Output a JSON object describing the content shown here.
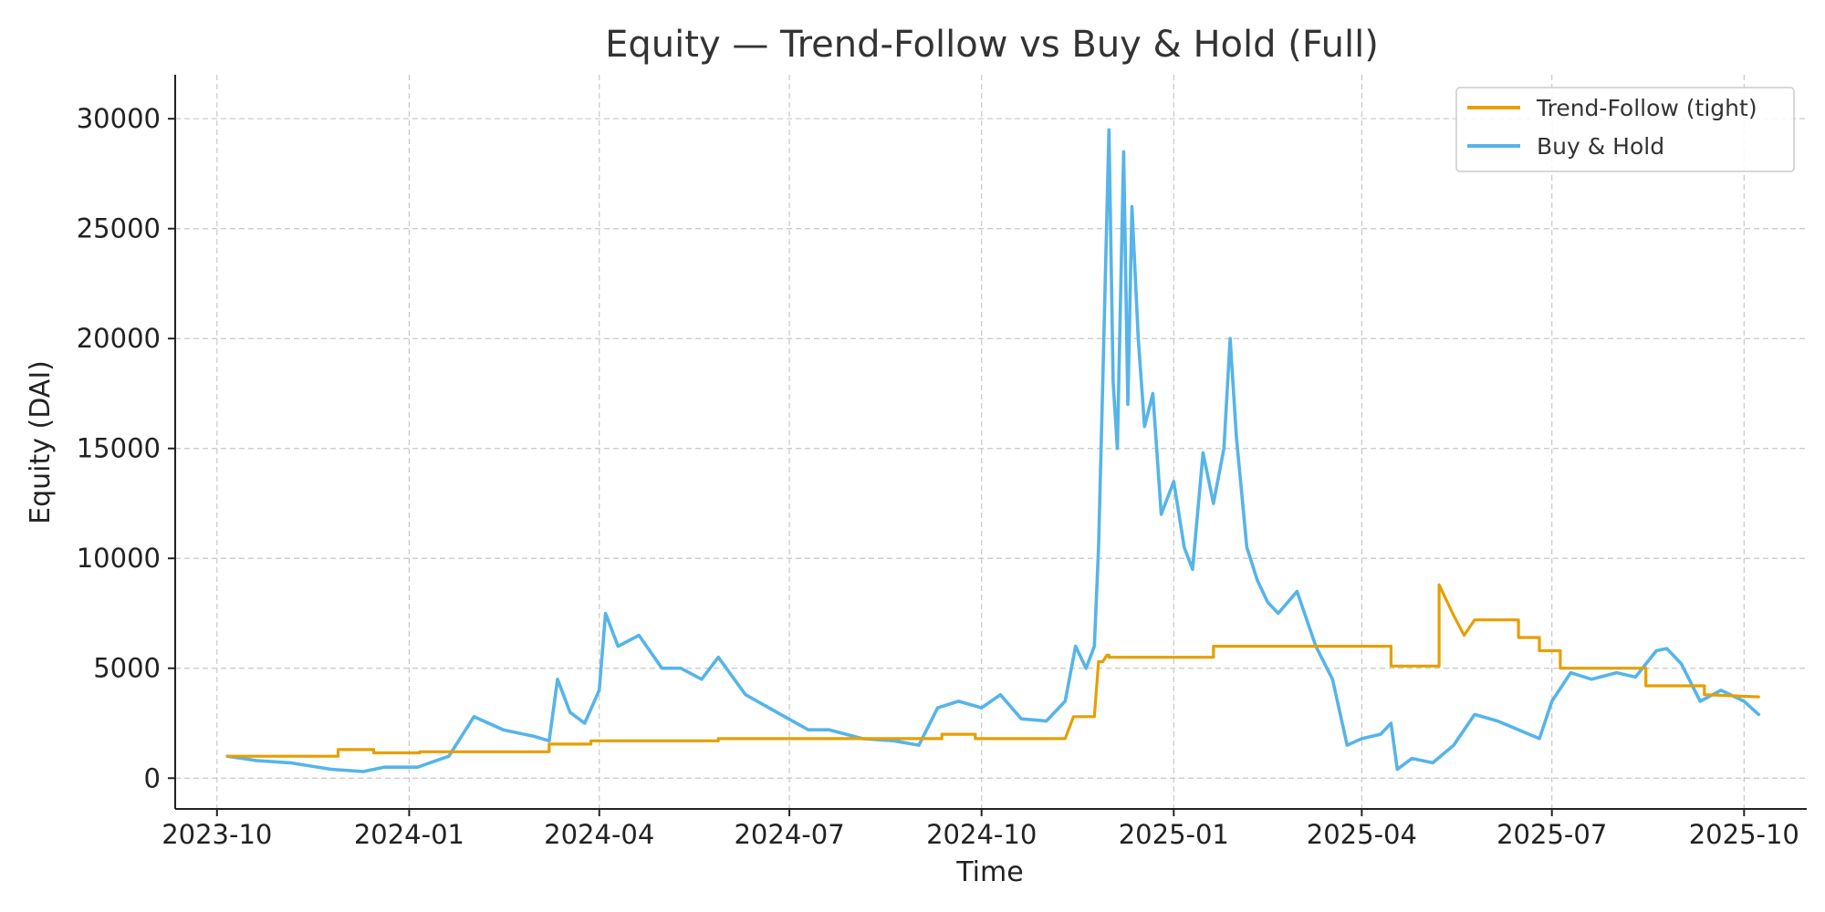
{
  "chart_data": {
    "type": "line",
    "title": "Equity — Trend-Follow vs Buy & Hold (Full)",
    "xlabel": "Time",
    "ylabel": "Equity (DAI)",
    "x_axis": "date",
    "xlim": [
      "2023-09-11",
      "2025-10-31"
    ],
    "ylim": [
      -1400,
      32000
    ],
    "xticks": [
      "2023-10",
      "2024-01",
      "2024-04",
      "2024-07",
      "2024-10",
      "2025-01",
      "2025-04",
      "2025-07",
      "2025-10"
    ],
    "yticks": [
      0,
      5000,
      10000,
      15000,
      20000,
      25000,
      30000
    ],
    "grid": true,
    "legend_position": "top-right",
    "series": [
      {
        "name": "Trend-Follow (tight)",
        "color": "#E69F00",
        "x": [
          "2023-10-06",
          "2023-11-28",
          "2023-11-28",
          "2023-12-15",
          "2023-12-15",
          "2024-01-06",
          "2024-01-06",
          "2024-03-08",
          "2024-03-08",
          "2024-03-28",
          "2024-03-28",
          "2024-05-28",
          "2024-05-28",
          "2024-09-12",
          "2024-09-12",
          "2024-09-28",
          "2024-09-28",
          "2024-11-10",
          "2024-11-14",
          "2024-11-24",
          "2024-11-26",
          "2024-11-28",
          "2024-11-30",
          "2024-12-01",
          "2024-12-01",
          "2025-01-20",
          "2025-01-20",
          "2025-01-28",
          "2025-01-28",
          "2025-04-15",
          "2025-04-15",
          "2025-05-08",
          "2025-05-08",
          "2025-05-15",
          "2025-05-20",
          "2025-05-25",
          "2025-05-25",
          "2025-06-15",
          "2025-06-15",
          "2025-06-25",
          "2025-06-25",
          "2025-07-05",
          "2025-07-05",
          "2025-08-15",
          "2025-08-15",
          "2025-09-12",
          "2025-09-12",
          "2025-10-08"
        ],
        "y": [
          1000,
          1000,
          1300,
          1300,
          1150,
          1150,
          1200,
          1200,
          1550,
          1550,
          1700,
          1700,
          1800,
          1800,
          2000,
          2000,
          1800,
          1800,
          2800,
          2800,
          5300,
          5300,
          5600,
          5600,
          5500,
          5500,
          6000,
          6000,
          6000,
          6000,
          5100,
          5100,
          8800,
          7400,
          6500,
          7200,
          7200,
          7200,
          6400,
          6400,
          5800,
          5800,
          5000,
          5000,
          4200,
          4200,
          3800,
          3700
        ]
      },
      {
        "name": "Buy & Hold",
        "color": "#56B4E9",
        "x": [
          "2023-10-06",
          "2023-10-20",
          "2023-11-05",
          "2023-11-25",
          "2023-12-10",
          "2023-12-20",
          "2024-01-05",
          "2024-01-20",
          "2024-02-01",
          "2024-02-15",
          "2024-03-01",
          "2024-03-08",
          "2024-03-12",
          "2024-03-18",
          "2024-03-25",
          "2024-04-01",
          "2024-04-04",
          "2024-04-10",
          "2024-04-20",
          "2024-05-01",
          "2024-05-10",
          "2024-05-20",
          "2024-05-28",
          "2024-06-10",
          "2024-06-25",
          "2024-07-10",
          "2024-07-20",
          "2024-08-05",
          "2024-08-20",
          "2024-09-01",
          "2024-09-10",
          "2024-09-20",
          "2024-10-01",
          "2024-10-10",
          "2024-10-20",
          "2024-11-01",
          "2024-11-10",
          "2024-11-15",
          "2024-11-20",
          "2024-11-24",
          "2024-11-26",
          "2024-11-28",
          "2024-12-01",
          "2024-12-03",
          "2024-12-05",
          "2024-12-08",
          "2024-12-10",
          "2024-12-12",
          "2024-12-15",
          "2024-12-18",
          "2024-12-22",
          "2024-12-26",
          "2025-01-01",
          "2025-01-06",
          "2025-01-10",
          "2025-01-15",
          "2025-01-20",
          "2025-01-25",
          "2025-01-28",
          "2025-01-31",
          "2025-02-05",
          "2025-02-10",
          "2025-02-15",
          "2025-02-20",
          "2025-03-01",
          "2025-03-10",
          "2025-03-18",
          "2025-03-25",
          "2025-04-01",
          "2025-04-10",
          "2025-04-15",
          "2025-04-18",
          "2025-04-25",
          "2025-05-05",
          "2025-05-15",
          "2025-05-25",
          "2025-06-05",
          "2025-06-15",
          "2025-06-25",
          "2025-07-01",
          "2025-07-10",
          "2025-07-20",
          "2025-08-01",
          "2025-08-10",
          "2025-08-20",
          "2025-08-25",
          "2025-09-01",
          "2025-09-10",
          "2025-09-20",
          "2025-10-01",
          "2025-10-08"
        ],
        "y": [
          1000,
          800,
          700,
          400,
          300,
          500,
          500,
          1000,
          2800,
          2200,
          1900,
          1700,
          4500,
          3000,
          2500,
          4000,
          7500,
          6000,
          6500,
          5000,
          5000,
          4500,
          5500,
          3800,
          3000,
          2200,
          2200,
          1800,
          1700,
          1500,
          3200,
          3500,
          3200,
          3800,
          2700,
          2600,
          3500,
          6000,
          5000,
          6000,
          10500,
          18000,
          29500,
          18000,
          15000,
          28500,
          17000,
          26000,
          20000,
          16000,
          17500,
          12000,
          13500,
          10500,
          9500,
          14800,
          12500,
          15000,
          20000,
          15500,
          10500,
          9000,
          8000,
          7500,
          8500,
          6000,
          4500,
          1500,
          1800,
          2000,
          2500,
          400,
          900,
          700,
          1500,
          2900,
          2600,
          2200,
          1800,
          3500,
          4800,
          4500,
          4800,
          4600,
          5800,
          5900,
          5200,
          3500,
          4000,
          3500,
          2900
        ]
      }
    ]
  }
}
